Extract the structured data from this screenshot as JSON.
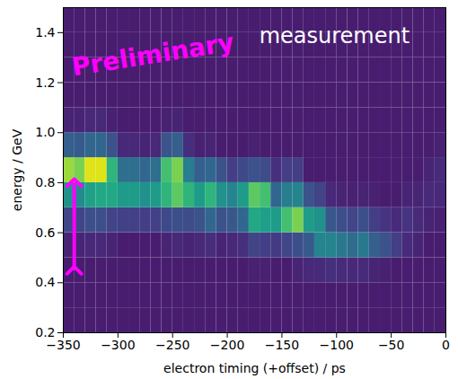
{
  "chart_data": {
    "type": "heatmap",
    "xlabel": "electron timing (+offset) / ps",
    "ylabel": "energy / GeV",
    "xlim": [
      -350,
      0
    ],
    "ylim": [
      0.2,
      1.5
    ],
    "xticks": [
      {
        "value": -350,
        "label": "−350"
      },
      {
        "value": -300,
        "label": "−300"
      },
      {
        "value": -250,
        "label": "−250"
      },
      {
        "value": -200,
        "label": "−200"
      },
      {
        "value": -150,
        "label": "−150"
      },
      {
        "value": -100,
        "label": "−100"
      },
      {
        "value": -50,
        "label": "−50"
      },
      0
    ],
    "yticks": [
      0.2,
      0.4,
      0.6,
      0.8,
      {
        "value": 1,
        "label": "1.0"
      },
      1.2,
      1.4
    ],
    "color": "viridis",
    "zlim": [
      0,
      100
    ],
    "x_edges": [
      -350,
      -340,
      -330,
      -320,
      -310,
      -300,
      -290,
      -280,
      -270,
      -260,
      -250,
      -240,
      -230,
      -220,
      -210,
      -200,
      -190,
      -180,
      -170,
      -160,
      -150,
      -140,
      -130,
      -120,
      -110,
      -100,
      -90,
      -80,
      -70,
      -60,
      -50,
      -40,
      -30,
      -20,
      -10,
      0
    ],
    "y_edges": [
      0.2,
      0.3,
      0.4,
      0.5,
      0.6,
      0.7,
      0.8,
      0.9,
      1.0,
      1.1,
      1.2,
      1.3,
      1.4,
      1.5
    ],
    "z": [
      [
        8,
        8,
        8,
        10,
        21,
        51,
        85,
        30,
        10,
        8,
        8,
        8,
        8
      ],
      [
        8,
        8,
        8,
        10,
        20,
        48,
        80,
        28,
        10,
        8,
        8,
        8,
        8
      ],
      [
        8,
        8,
        8,
        11,
        24,
        57,
        95,
        33,
        11,
        8,
        8,
        8,
        8
      ],
      [
        8,
        8,
        8,
        11,
        24,
        60,
        95,
        33,
        11,
        8,
        8,
        8,
        8
      ],
      [
        8,
        8,
        8,
        10,
        20,
        60,
        65,
        25,
        9,
        8,
        8,
        8,
        8
      ],
      [
        8,
        8,
        8,
        8,
        19,
        55,
        36,
        11,
        8,
        8,
        8,
        8,
        8
      ],
      [
        8,
        8,
        8,
        8,
        19,
        55,
        36,
        11,
        8,
        8,
        8,
        8,
        8
      ],
      [
        8,
        8,
        8,
        8,
        18,
        50,
        33,
        10,
        8,
        8,
        8,
        8,
        8
      ],
      [
        8,
        8,
        8,
        8,
        19,
        55,
        36,
        11,
        8,
        8,
        8,
        8,
        8
      ],
      [
        8,
        8,
        8,
        10,
        22,
        65,
        70,
        26,
        9,
        8,
        8,
        8,
        8
      ],
      [
        8,
        8,
        8,
        11,
        24,
        75,
        80,
        30,
        10,
        8,
        8,
        8,
        8
      ],
      [
        8,
        8,
        8,
        10,
        23,
        65,
        42,
        13,
        8,
        8,
        8,
        8,
        8
      ],
      [
        8,
        8,
        8,
        11,
        25,
        55,
        30,
        9,
        8,
        8,
        8,
        8,
        8
      ],
      [
        8,
        8,
        8,
        13,
        33,
        65,
        33,
        10,
        8,
        8,
        8,
        8,
        8
      ],
      [
        8,
        8,
        8,
        10,
        25,
        50,
        25,
        8,
        8,
        8,
        8,
        8,
        8
      ],
      [
        8,
        8,
        8,
        11,
        27,
        45,
        18,
        8,
        8,
        8,
        8,
        8,
        8
      ],
      [
        8,
        8,
        8,
        14,
        33,
        55,
        22,
        8,
        8,
        8,
        8,
        8,
        8
      ],
      [
        8,
        8,
        9,
        20,
        60,
        75,
        25,
        9,
        8,
        8,
        8,
        8,
        8
      ],
      [
        8,
        8,
        9,
        18,
        56,
        70,
        23,
        8,
        8,
        8,
        8,
        8,
        8
      ],
      [
        8,
        8,
        8,
        17,
        55,
        33,
        14,
        8,
        8,
        8,
        8,
        8,
        8
      ],
      [
        8,
        8,
        8,
        21,
        70,
        42,
        18,
        8,
        8,
        8,
        8,
        8,
        8
      ],
      [
        8,
        8,
        10,
        24,
        80,
        45,
        18,
        8,
        8,
        8,
        8,
        8,
        8
      ],
      [
        8,
        8,
        11,
        28,
        55,
        25,
        8,
        8,
        8,
        8,
        8,
        8,
        8
      ],
      [
        8,
        8,
        12,
        45,
        50,
        20,
        8,
        8,
        8,
        8,
        8,
        8,
        8
      ],
      [
        8,
        8,
        14,
        45,
        27,
        11,
        8,
        8,
        8,
        8,
        8,
        8,
        8
      ],
      [
        8,
        8,
        12,
        40,
        24,
        10,
        8,
        8,
        8,
        8,
        8,
        8,
        8
      ],
      [
        8,
        8,
        11,
        35,
        21,
        9,
        8,
        8,
        8,
        8,
        8,
        8,
        8
      ],
      [
        8,
        8,
        12,
        40,
        24,
        10,
        8,
        8,
        8,
        8,
        8,
        8,
        8
      ],
      [
        8,
        8,
        10,
        30,
        18,
        9,
        8,
        8,
        8,
        8,
        8,
        8,
        8
      ],
      [
        8,
        8,
        9,
        25,
        15,
        8,
        8,
        8,
        8,
        8,
        8,
        8,
        8
      ],
      [
        8,
        8,
        8,
        18,
        12,
        8,
        8,
        8,
        8,
        8,
        8,
        8,
        8
      ],
      [
        8,
        8,
        8,
        12,
        15,
        10,
        8,
        8,
        8,
        8,
        8,
        8,
        8
      ],
      [
        8,
        8,
        8,
        10,
        12,
        10,
        8,
        8,
        8,
        8,
        8,
        8,
        8
      ],
      [
        8,
        8,
        8,
        8,
        10,
        12,
        10,
        8,
        8,
        8,
        8,
        8,
        8
      ],
      [
        8,
        8,
        8,
        8,
        9,
        11,
        12,
        9,
        8,
        8,
        8,
        8,
        8
      ]
    ],
    "annotations": [
      {
        "text": "Preliminary",
        "x": -268,
        "y": 1.31,
        "color": "#ff00ff"
      },
      {
        "text": "measurement",
        "x": -102,
        "y": 1.385,
        "color": "#ffffff"
      }
    ],
    "arrows": [
      {
        "x": -340,
        "y1": 0.45,
        "y2": 0.8,
        "color": "#ff00ff"
      }
    ]
  }
}
